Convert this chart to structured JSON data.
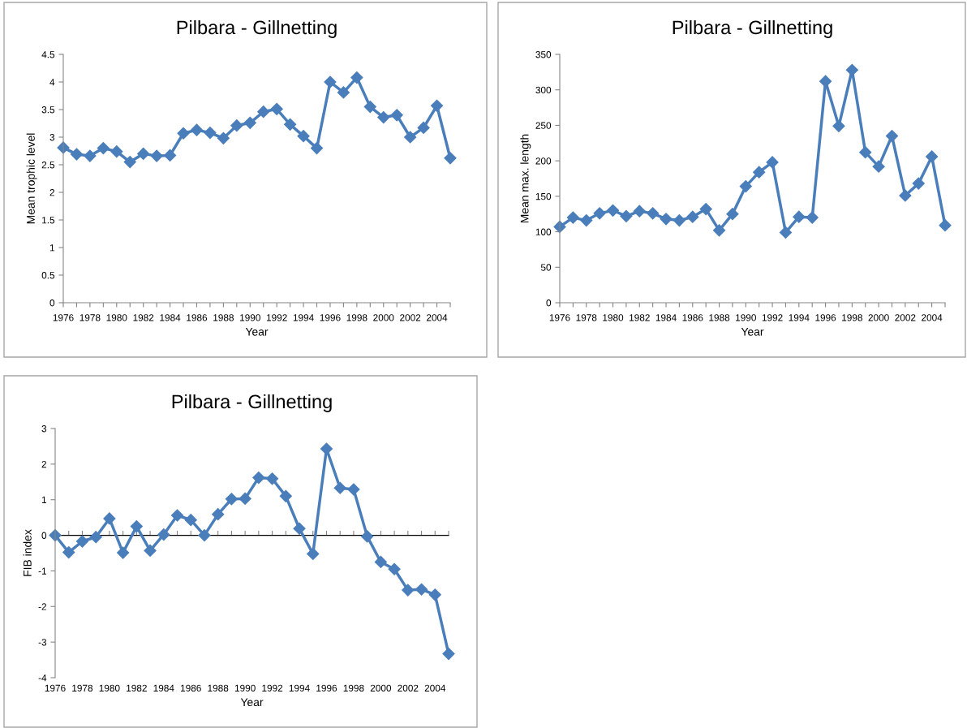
{
  "chart_data": [
    {
      "type": "line",
      "title": "Pilbara - Gillnetting",
      "xlabel": "Year",
      "ylabel": "Mean trophic level",
      "categories": [
        "1976",
        null,
        "1978",
        null,
        "1980",
        null,
        "1982",
        null,
        "1984",
        null,
        "1986",
        null,
        "1988",
        null,
        "1990",
        null,
        "1992",
        null,
        "1994",
        null,
        "1996",
        null,
        "1998",
        null,
        "2000",
        null,
        "2002",
        null,
        "2004",
        null
      ],
      "series": [
        {
          "color": "#4a7ebb",
          "values": [
            2.81,
            2.69,
            2.66,
            2.8,
            2.74,
            2.55,
            2.7,
            2.66,
            2.67,
            3.07,
            3.13,
            3.08,
            2.98,
            3.21,
            3.26,
            3.46,
            3.51,
            3.23,
            3.02,
            2.8,
            4.0,
            3.81,
            4.08,
            3.55,
            3.36,
            3.4,
            3.0,
            3.17,
            3.57,
            2.62
          ]
        }
      ],
      "ylim": [
        0,
        4.5
      ],
      "yticks": [
        0,
        {
          "value": 0.5,
          "label": "0.5"
        },
        1,
        {
          "value": 1.5,
          "label": "1.5"
        },
        2,
        {
          "value": 2.5,
          "label": "2.5"
        },
        3,
        {
          "value": 3.5,
          "label": "3.5"
        },
        4,
        {
          "value": 4.5,
          "label": "4.5"
        }
      ],
      "marker": "diamond",
      "line_style": "solid"
    },
    {
      "type": "line",
      "title": "Pilbara - Gillnetting",
      "xlabel": "Year",
      "ylabel": "Mean max. length",
      "categories": [
        "1976",
        null,
        "1978",
        null,
        "1980",
        null,
        "1982",
        null,
        "1984",
        null,
        "1986",
        null,
        "1988",
        null,
        "1990",
        null,
        "1992",
        null,
        "1994",
        null,
        "1996",
        null,
        "1998",
        null,
        "2000",
        null,
        "2002",
        null,
        "2004",
        null
      ],
      "series": [
        {
          "color": "#4a7ebb",
          "values": [
            107,
            120,
            116,
            126,
            130,
            122,
            129,
            126,
            118,
            116,
            121,
            132,
            102,
            125,
            164,
            184,
            198,
            99,
            121,
            120,
            312,
            249,
            328,
            212,
            192,
            235,
            151,
            168,
            206,
            109
          ]
        }
      ],
      "ylim": [
        0,
        350
      ],
      "yticks": [
        0,
        50,
        100,
        150,
        200,
        250,
        300,
        350
      ],
      "marker": "diamond",
      "line_style": "solid"
    },
    {
      "type": "line",
      "title": "Pilbara - Gillnetting",
      "xlabel": "Year",
      "ylabel": "FIB index",
      "categories": [
        "1976",
        null,
        "1978",
        null,
        "1980",
        null,
        "1982",
        null,
        "1984",
        null,
        "1986",
        null,
        "1988",
        null,
        "1990",
        null,
        "1992",
        null,
        "1994",
        null,
        "1996",
        null,
        "1998",
        null,
        "2000",
        null,
        "2002",
        null,
        "2004",
        null
      ],
      "series": [
        {
          "color": "#4a7ebb",
          "values": [
            0,
            -0.48,
            -0.17,
            -0.05,
            0.47,
            -0.49,
            0.25,
            -0.43,
            0.02,
            0.56,
            0.43,
            0,
            0.59,
            1.02,
            1.03,
            1.62,
            1.59,
            1.1,
            0.19,
            -0.52,
            2.43,
            1.33,
            1.29,
            -0.03,
            -0.75,
            -0.95,
            -1.54,
            -1.52,
            -1.67,
            -3.33
          ]
        }
      ],
      "ylim": [
        -4,
        3
      ],
      "yticks": [
        -4,
        -3,
        -2,
        -1,
        0,
        1,
        2,
        3
      ],
      "marker": "diamond",
      "line_style": "solid"
    }
  ]
}
